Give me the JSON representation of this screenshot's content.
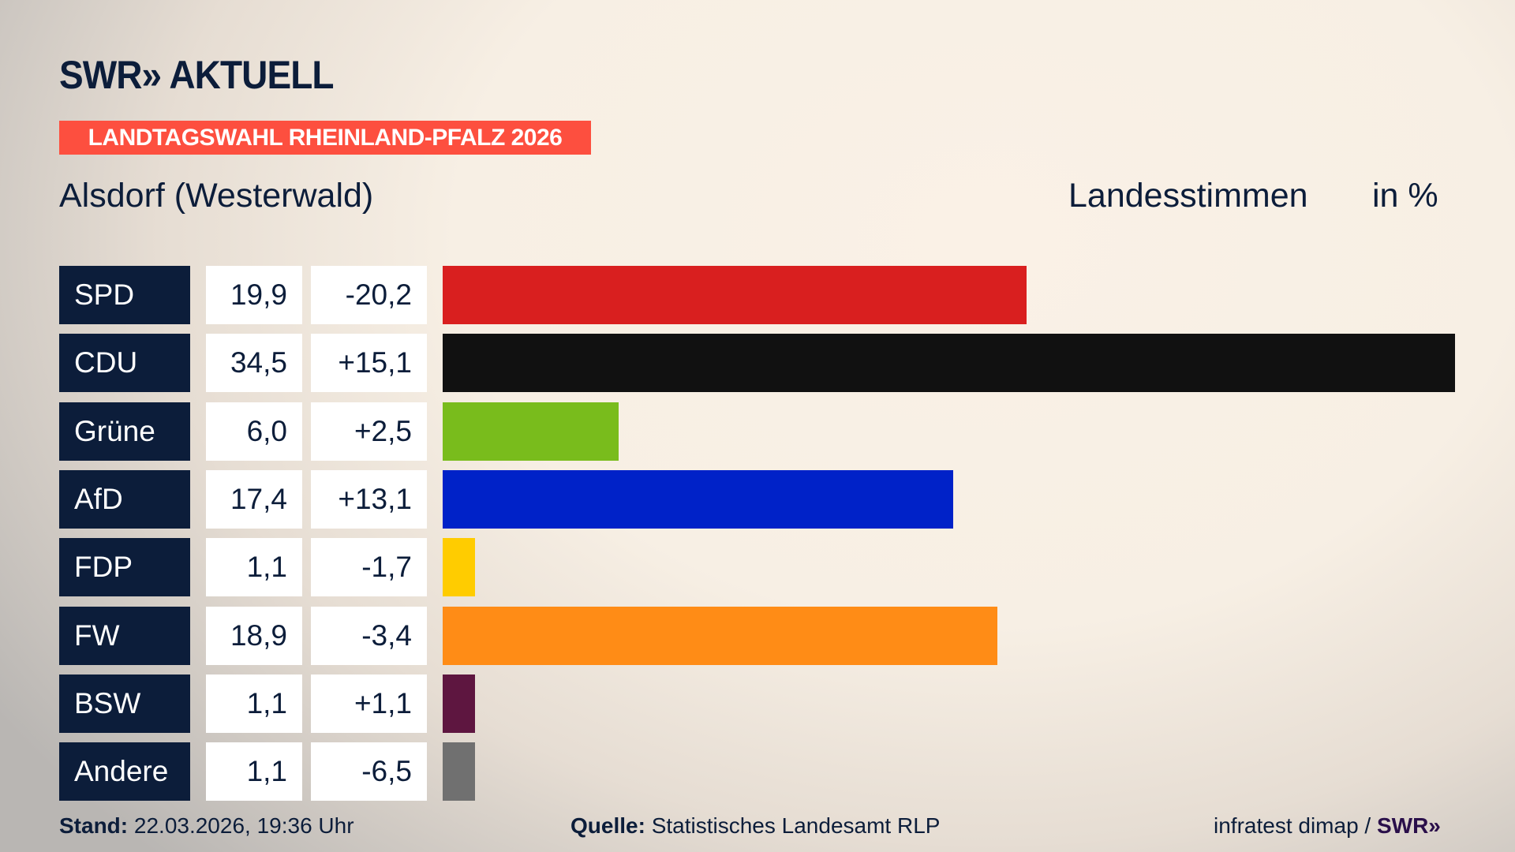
{
  "logo": "SWR» AKTUELL",
  "banner": "LANDTAGSWAHL RHEINLAND-PFALZ 2026",
  "location": "Alsdorf (Westerwald)",
  "vote_type": "Landesstimmen",
  "unit": "in %",
  "chart_data": {
    "type": "bar",
    "orientation": "horizontal",
    "categories": [
      "SPD",
      "CDU",
      "Grüne",
      "AfD",
      "FDP",
      "FW",
      "BSW",
      "Andere"
    ],
    "values": [
      19.9,
      34.5,
      6.0,
      17.4,
      1.1,
      18.9,
      1.1,
      1.1
    ],
    "value_labels": [
      "19,9",
      "34,5",
      "6,0",
      "17,4",
      "1,1",
      "18,9",
      "1,1",
      "1,1"
    ],
    "changes": [
      "-20,2",
      "+15,1",
      "+2,5",
      "+13,1",
      "-1,7",
      "-3,4",
      "+1,1",
      "-6,5"
    ],
    "colors": [
      "#d91f1f",
      "#111111",
      "#79bc1c",
      "#0022c8",
      "#ffcc00",
      "#ff8c16",
      "#5e1640",
      "#707070"
    ],
    "title": "Landesstimmen",
    "ylabel": "in %",
    "xlim": [
      0,
      34.5
    ]
  },
  "footer": {
    "stand_label": "Stand:",
    "stand_value": "22.03.2026, 19:36 Uhr",
    "source_label": "Quelle:",
    "source_value": "Statistisches Landesamt RLP",
    "credit": "infratest dimap /",
    "credit_logo": "SWR»"
  }
}
